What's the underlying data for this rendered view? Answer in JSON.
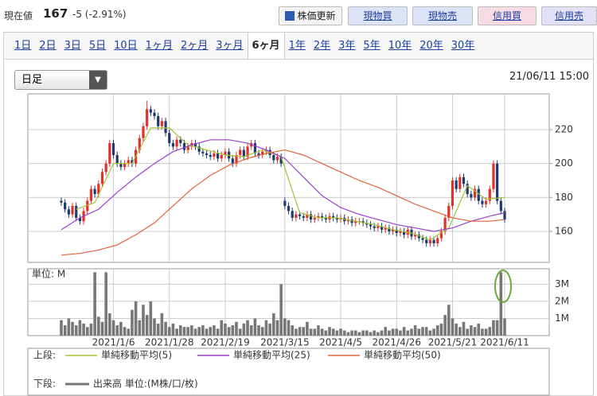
{
  "header": {
    "price_label": "現在値",
    "price": "167",
    "change": "-5 (-2.91%)",
    "buttons": [
      "株価更新",
      "現物買",
      "現物売",
      "信用買",
      "信用売"
    ]
  },
  "tabs": {
    "items": [
      "1日",
      "2日",
      "3日",
      "5日",
      "10日",
      "1ヶ月",
      "2ヶ月",
      "3ヶ月",
      "6ヶ月",
      "1年",
      "2年",
      "3年",
      "5年",
      "10年",
      "20年",
      "30年"
    ],
    "selected": 8
  },
  "toolbar": {
    "dropdown": "日足",
    "timestamp": "21/06/11 15:00"
  },
  "legend": {
    "upper_label": "上段:",
    "lower_label": "下段:"
  },
  "chart_data": [
    {
      "type": "candlestick",
      "up_color": "#e0302a",
      "down_color": "#1f3a6e",
      "grid": true,
      "ylim": [
        141.7,
        241.1
      ],
      "yticks": [
        160,
        180,
        200,
        220
      ],
      "open": [
        178,
        177,
        173,
        170,
        175,
        168,
        166,
        172,
        178,
        185,
        182,
        188,
        195,
        200,
        212,
        205,
        200,
        198,
        200,
        202,
        200,
        208,
        215,
        222,
        232,
        230,
        228,
        222,
        225,
        218,
        212,
        210,
        214,
        212,
        208,
        210,
        212,
        210,
        207,
        206,
        205,
        204,
        206,
        203,
        205,
        207,
        203,
        200,
        205,
        208,
        204,
        210,
        212,
        206,
        205,
        207,
        208,
        205,
        202,
        204,
        178,
        175,
        172,
        168,
        170,
        169,
        168,
        170,
        167,
        168,
        169,
        168,
        167,
        169,
        168,
        167,
        168,
        166,
        167,
        165,
        166,
        166,
        165,
        164,
        163,
        162,
        163,
        161,
        162,
        160,
        161,
        159,
        160,
        158,
        161,
        157,
        158,
        156,
        155,
        153,
        155,
        153,
        156,
        160,
        168,
        175,
        190,
        185,
        192,
        188,
        182,
        180,
        185,
        178,
        176,
        178,
        185,
        200,
        178,
        172
      ],
      "high": [
        180,
        179,
        175,
        177,
        177,
        170,
        174,
        180,
        187,
        187,
        190,
        197,
        202,
        214,
        214,
        207,
        202,
        202,
        204,
        204,
        210,
        217,
        224,
        237,
        234,
        232,
        230,
        227,
        227,
        220,
        214,
        216,
        216,
        214,
        212,
        214,
        214,
        212,
        209,
        208,
        207,
        208,
        208,
        207,
        209,
        209,
        205,
        207,
        210,
        210,
        212,
        214,
        214,
        208,
        209,
        210,
        210,
        207,
        206,
        206,
        180,
        177,
        174,
        172,
        172,
        171,
        172,
        172,
        170,
        171,
        171,
        170,
        171,
        171,
        170,
        170,
        170,
        169,
        169,
        168,
        168,
        168,
        167,
        166,
        165,
        165,
        165,
        164,
        164,
        163,
        163,
        162,
        162,
        163,
        163,
        160,
        160,
        158,
        157,
        157,
        157,
        158,
        162,
        170,
        177,
        192,
        192,
        194,
        194,
        190,
        184,
        187,
        187,
        180,
        180,
        187,
        202,
        202,
        180,
        174
      ],
      "low": [
        175,
        171,
        168,
        168,
        166,
        164,
        164,
        170,
        176,
        180,
        180,
        186,
        193,
        198,
        203,
        198,
        196,
        196,
        198,
        198,
        198,
        206,
        213,
        220,
        228,
        226,
        220,
        220,
        216,
        210,
        208,
        208,
        210,
        206,
        206,
        208,
        208,
        205,
        204,
        203,
        202,
        202,
        201,
        201,
        203,
        201,
        198,
        198,
        203,
        202,
        202,
        208,
        204,
        203,
        203,
        205,
        203,
        200,
        200,
        198,
        173,
        170,
        166,
        166,
        167,
        166,
        166,
        165,
        165,
        166,
        166,
        165,
        165,
        166,
        165,
        165,
        164,
        164,
        163,
        163,
        164,
        163,
        162,
        161,
        160,
        160,
        159,
        159,
        158,
        158,
        157,
        157,
        156,
        156,
        155,
        155,
        154,
        153,
        151,
        151,
        151,
        151,
        154,
        158,
        166,
        173,
        183,
        183,
        186,
        180,
        178,
        178,
        176,
        174,
        174,
        176,
        183,
        176,
        170,
        165
      ],
      "close": [
        177,
        173,
        170,
        175,
        168,
        166,
        172,
        178,
        185,
        182,
        188,
        195,
        200,
        212,
        205,
        200,
        198,
        200,
        202,
        200,
        208,
        215,
        222,
        232,
        230,
        228,
        222,
        225,
        218,
        212,
        210,
        214,
        212,
        208,
        210,
        212,
        210,
        207,
        206,
        205,
        204,
        206,
        203,
        205,
        207,
        203,
        200,
        205,
        208,
        204,
        210,
        212,
        206,
        205,
        207,
        208,
        205,
        202,
        204,
        200,
        175,
        172,
        168,
        170,
        169,
        168,
        170,
        167,
        168,
        169,
        168,
        167,
        169,
        168,
        167,
        168,
        166,
        167,
        165,
        166,
        166,
        165,
        164,
        163,
        162,
        163,
        161,
        162,
        160,
        161,
        159,
        160,
        158,
        161,
        157,
        158,
        156,
        155,
        153,
        155,
        153,
        156,
        160,
        168,
        175,
        190,
        185,
        192,
        188,
        182,
        180,
        185,
        178,
        176,
        178,
        185,
        200,
        178,
        172,
        167
      ],
      "series": [
        {
          "name": "単純移動平均(5)",
          "color": "#a3c437",
          "x": [
            4,
            9,
            14,
            19,
            24,
            29,
            34,
            39,
            44,
            49,
            54,
            59,
            64,
            69,
            74,
            79,
            84,
            89,
            94,
            99,
            104,
            109,
            114,
            119
          ],
          "values": [
            173,
            177,
            200,
            200,
            221,
            221,
            211,
            208,
            205,
            204,
            208,
            204,
            171,
            168,
            168,
            166,
            164,
            161,
            159,
            155,
            162,
            187,
            179,
            180
          ]
        },
        {
          "name": "単純移動平均(25)",
          "color": "#9b3fd0",
          "x": [
            0,
            5,
            10,
            15,
            20,
            25,
            30,
            35,
            40,
            45,
            50,
            55,
            60,
            65,
            70,
            75,
            80,
            85,
            90,
            95,
            100,
            105,
            110,
            115,
            119
          ],
          "values": [
            161,
            168,
            173,
            183,
            192,
            200,
            207,
            211,
            214,
            214,
            212,
            208,
            203,
            192,
            181,
            174,
            170,
            167,
            164,
            162,
            160,
            162,
            166,
            169,
            171
          ]
        },
        {
          "name": "単純移動平均(50)",
          "color": "#e2643a",
          "x": [
            0,
            5,
            10,
            15,
            20,
            25,
            30,
            35,
            40,
            45,
            50,
            55,
            60,
            65,
            70,
            75,
            80,
            85,
            90,
            95,
            100,
            105,
            110,
            115,
            119
          ],
          "values": [
            146,
            147,
            149,
            152,
            158,
            165,
            175,
            185,
            193,
            199,
            203,
            206,
            208,
            205,
            200,
            195,
            190,
            186,
            181,
            176,
            172,
            168,
            166,
            166,
            167
          ]
        }
      ]
    },
    {
      "type": "bar",
      "unit_label": "単位: M",
      "color": "#777777",
      "name": "出来高 単位:(M株/口/枚)",
      "ylim": [
        0,
        3.9
      ],
      "yticks": [
        {
          "value": 1,
          "label": "1M"
        },
        {
          "value": 2,
          "label": "2M"
        },
        {
          "value": 3,
          "label": "3M"
        }
      ],
      "categories": [
        null,
        null,
        null,
        null,
        null,
        null,
        null,
        null,
        null,
        null,
        null,
        null,
        null,
        null,
        "2021/1/6",
        null,
        null,
        null,
        null,
        null,
        null,
        null,
        null,
        null,
        null,
        null,
        null,
        null,
        null,
        "2021/1/28",
        null,
        null,
        null,
        null,
        null,
        null,
        null,
        null,
        null,
        null,
        null,
        null,
        null,
        null,
        "2021/2/19",
        null,
        null,
        null,
        null,
        null,
        null,
        null,
        null,
        null,
        null,
        null,
        null,
        null,
        null,
        null,
        "2021/3/15",
        null,
        null,
        null,
        null,
        null,
        null,
        null,
        null,
        null,
        null,
        null,
        null,
        null,
        null,
        "2021/4/5",
        null,
        null,
        null,
        null,
        null,
        null,
        null,
        null,
        null,
        null,
        null,
        null,
        null,
        null,
        "2021/4/26",
        null,
        null,
        null,
        null,
        null,
        null,
        null,
        null,
        null,
        null,
        null,
        null,
        null,
        null,
        "2021/5/21",
        null,
        null,
        null,
        null,
        null,
        null,
        null,
        null,
        null,
        null,
        null,
        null,
        null,
        "2021/6/11"
      ],
      "values": [
        0.9,
        0.6,
        1.0,
        0.8,
        0.6,
        0.9,
        0.7,
        0.5,
        0.7,
        3.7,
        1.1,
        0.8,
        3.7,
        1.3,
        0.9,
        0.6,
        0.8,
        0.5,
        0.4,
        1.5,
        2.0,
        0.9,
        1.8,
        1.2,
        2.0,
        1.0,
        0.7,
        1.3,
        0.8,
        0.5,
        0.7,
        0.4,
        0.6,
        0.5,
        0.5,
        0.6,
        0.4,
        0.5,
        0.6,
        0.4,
        0.5,
        0.6,
        0.4,
        0.9,
        0.7,
        0.5,
        0.6,
        0.8,
        0.4,
        0.7,
        0.9,
        0.6,
        1.0,
        0.6,
        0.5,
        0.9,
        0.7,
        1.3,
        0.9,
        3.0,
        1.0,
        0.9,
        0.6,
        0.4,
        0.5,
        0.5,
        0.8,
        0.4,
        0.4,
        0.6,
        0.4,
        0.3,
        0.5,
        0.4,
        0.3,
        0.4,
        0.3,
        0.2,
        0.3,
        0.3,
        0.2,
        0.3,
        0.3,
        0.2,
        0.3,
        0.2,
        0.3,
        0.5,
        0.3,
        0.4,
        0.4,
        0.3,
        0.5,
        0.3,
        0.4,
        0.6,
        0.4,
        0.5,
        0.5,
        0.3,
        0.4,
        0.6,
        0.7,
        1.2,
        1.8,
        1.0,
        0.7,
        0.5,
        0.8,
        0.4,
        0.6,
        0.5,
        0.7,
        0.4,
        0.4,
        0.5,
        0.9,
        0.9,
        3.7,
        1.0
      ]
    }
  ]
}
